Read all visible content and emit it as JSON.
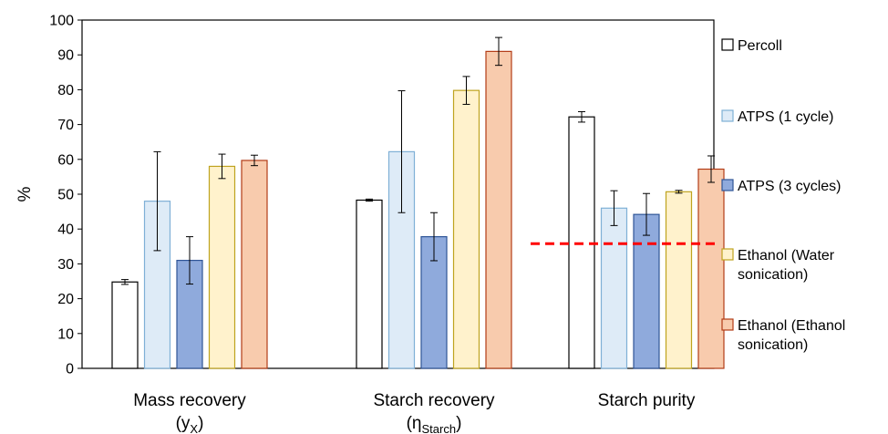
{
  "chart_data": {
    "type": "bar",
    "ylabel": "%",
    "ylim": [
      0,
      100
    ],
    "yticks": [
      0,
      10,
      20,
      30,
      40,
      50,
      60,
      70,
      80,
      90,
      100
    ],
    "categories": [
      {
        "line1": "Mass recovery",
        "line2_main": "(y",
        "line2_sub": "X",
        "line2_end": ")"
      },
      {
        "line1": "Starch recovery",
        "line2_main": "(η",
        "line2_sub": "Starch",
        "line2_end": ")"
      },
      {
        "line1": "Starch purity",
        "line2_main": "",
        "line2_sub": "",
        "line2_end": ""
      }
    ],
    "series": [
      {
        "name": "Percoll",
        "legend_lines": [
          "Percoll"
        ],
        "fill": "#ffffff",
        "stroke": "#000000",
        "values": [
          24.8,
          48.3,
          72.2
        ],
        "errors": [
          0.7,
          0.3,
          1.5
        ]
      },
      {
        "name": "ATPS (1 cycle)",
        "legend_lines": [
          "ATPS (1 cycle)"
        ],
        "fill": "#deebf7",
        "stroke": "#7fb0d6",
        "values": [
          48.0,
          62.2,
          46.0
        ],
        "errors": [
          14.2,
          17.5,
          5.0
        ]
      },
      {
        "name": "ATPS (3 cycles)",
        "legend_lines": [
          "ATPS (3 cycles)"
        ],
        "fill": "#8faadc",
        "stroke": "#2f5597",
        "values": [
          31.0,
          37.8,
          44.2
        ],
        "errors": [
          6.8,
          6.9,
          6.0
        ]
      },
      {
        "name": "Ethanol (Water sonication)",
        "legend_lines": [
          "Ethanol (Water",
          "sonication)"
        ],
        "fill": "#fff2cc",
        "stroke": "#bfa31f",
        "values": [
          58.0,
          79.8,
          50.7
        ],
        "errors": [
          3.5,
          4.0,
          0.4
        ]
      },
      {
        "name": "Ethanol (Ethanol sonication)",
        "legend_lines": [
          "Ethanol (Ethanol",
          "sonication)"
        ],
        "fill": "#f8cbad",
        "stroke": "#b23c17",
        "values": [
          59.7,
          91.0,
          57.2
        ],
        "errors": [
          1.5,
          4.0,
          3.8
        ]
      }
    ],
    "reference_line": {
      "value": 35.8,
      "category_index": 2,
      "color": "#ff0000",
      "style": "dashed"
    },
    "grid": false,
    "legend_position": "right"
  }
}
